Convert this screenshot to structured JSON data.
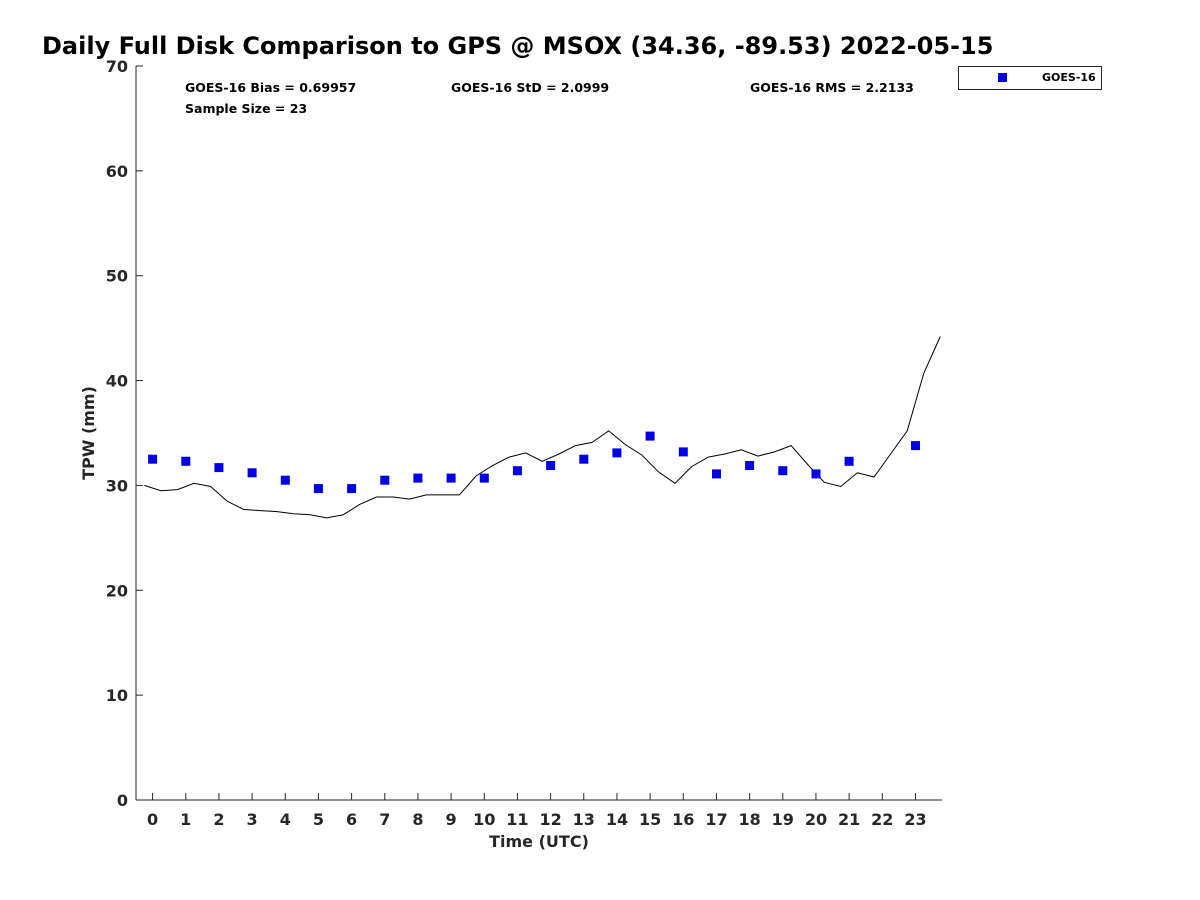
{
  "chart_data": {
    "type": "scatter",
    "title": "Daily Full Disk Comparison to GPS @ MSOX (34.36, -89.53) 2022-05-15",
    "xlabel": "Time (UTC)",
    "ylabel": "TPW (mm)",
    "xlim": [
      -0.5,
      23.8
    ],
    "ylim": [
      0,
      70
    ],
    "x_ticks": [
      0,
      1,
      2,
      3,
      4,
      5,
      6,
      7,
      8,
      9,
      10,
      11,
      12,
      13,
      14,
      15,
      16,
      17,
      18,
      19,
      20,
      21,
      22,
      23
    ],
    "y_ticks": [
      0,
      10,
      20,
      30,
      40,
      50,
      60,
      70
    ],
    "grid": false,
    "legend_position": "outside-top-right",
    "stats": {
      "bias": "GOES-16 Bias = 0.69957",
      "std": "GOES-16 StD = 2.0999",
      "rms": "GOES-16 RMS = 2.2133",
      "sample": "Sample Size = 23"
    },
    "series": [
      {
        "name": "GOES-16",
        "kind": "marker",
        "color": "#0000e6",
        "x": [
          0,
          1,
          2,
          3,
          4,
          5,
          6,
          7,
          8,
          9,
          10,
          11,
          12,
          13,
          14,
          15,
          16,
          17,
          18,
          19,
          20,
          21,
          23
        ],
        "y": [
          32.5,
          32.3,
          31.7,
          31.2,
          30.5,
          29.7,
          29.7,
          30.5,
          30.7,
          30.7,
          30.7,
          31.4,
          31.9,
          32.5,
          33.1,
          34.7,
          33.2,
          31.1,
          31.9,
          31.4,
          31.1,
          32.3,
          33.8
        ]
      },
      {
        "kind": "line",
        "color": "#000000",
        "x": [
          -0.25,
          0.25,
          0.75,
          1.25,
          1.75,
          2.25,
          2.75,
          3.25,
          3.75,
          4.25,
          4.75,
          5.25,
          5.75,
          6.25,
          6.75,
          7.25,
          7.75,
          8.25,
          8.75,
          9.25,
          9.75,
          10.25,
          10.75,
          11.25,
          11.75,
          12.25,
          12.75,
          13.25,
          13.75,
          14.25,
          14.75,
          15.25,
          15.75,
          16.25,
          16.75,
          17.25,
          17.75,
          18.25,
          18.75,
          19.25,
          19.75,
          20.25,
          20.75,
          21.25,
          21.75,
          22.25,
          22.75,
          23.25,
          23.75
        ],
        "y": [
          30.0,
          29.5,
          29.6,
          30.2,
          29.9,
          28.5,
          27.7,
          27.6,
          27.5,
          27.3,
          27.2,
          26.9,
          27.2,
          28.2,
          28.9,
          28.9,
          28.7,
          29.1,
          29.1,
          29.1,
          30.9,
          31.9,
          32.7,
          33.1,
          32.3,
          33.0,
          33.8,
          34.1,
          35.2,
          33.9,
          32.9,
          31.3,
          30.2,
          31.8,
          32.7,
          33.0,
          33.4,
          32.8,
          33.2,
          33.8,
          32.0,
          30.3,
          29.9,
          31.2,
          30.8,
          33.0,
          35.2,
          40.7,
          44.2
        ]
      }
    ]
  }
}
